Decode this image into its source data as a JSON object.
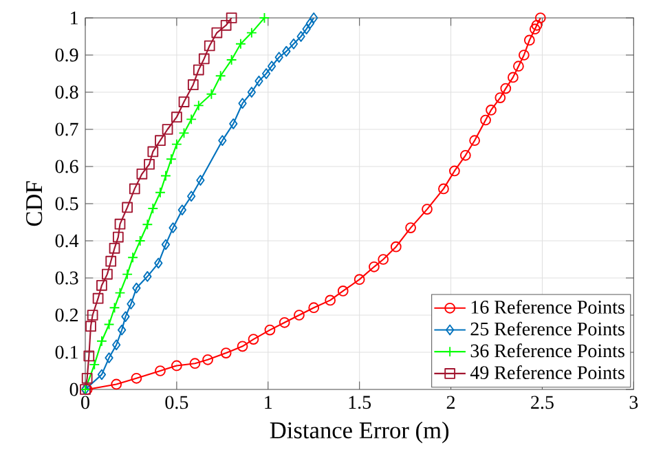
{
  "chart_data": {
    "type": "line",
    "xlabel": "Distance Error (m)",
    "ylabel": "CDF",
    "xlim": [
      0,
      3
    ],
    "ylim": [
      0,
      1
    ],
    "xticks": [
      0,
      0.5,
      1,
      1.5,
      2,
      2.5,
      3
    ],
    "yticks": [
      0,
      0.1,
      0.2,
      0.3,
      0.4,
      0.5,
      0.6,
      0.7,
      0.8,
      0.9,
      1
    ],
    "grid": true,
    "legend": "bottom right",
    "line_style": "solid",
    "series": [
      {
        "name": "16 Reference Points",
        "color": "#ff0000",
        "marker": "circle",
        "x": [
          0.01,
          0.17,
          0.28,
          0.41,
          0.5,
          0.6,
          0.67,
          0.77,
          0.86,
          0.92,
          1.01,
          1.09,
          1.17,
          1.25,
          1.34,
          1.41,
          1.5,
          1.58,
          1.63,
          1.7,
          1.78,
          1.87,
          1.96,
          2.02,
          2.08,
          2.13,
          2.19,
          2.22,
          2.27,
          2.3,
          2.34,
          2.37,
          2.4,
          2.43,
          2.46,
          2.47,
          2.49
        ],
        "values": [
          0,
          0.014,
          0.03,
          0.05,
          0.064,
          0.07,
          0.08,
          0.098,
          0.116,
          0.135,
          0.16,
          0.18,
          0.2,
          0.22,
          0.24,
          0.265,
          0.296,
          0.33,
          0.35,
          0.384,
          0.435,
          0.485,
          0.54,
          0.588,
          0.63,
          0.67,
          0.725,
          0.752,
          0.785,
          0.81,
          0.84,
          0.87,
          0.9,
          0.94,
          0.97,
          0.98,
          1
        ]
      },
      {
        "name": "25 Reference Points",
        "color": "#0072bd",
        "marker": "diamond",
        "x": [
          0,
          0.09,
          0.13,
          0.17,
          0.2,
          0.22,
          0.25,
          0.28,
          0.34,
          0.4,
          0.44,
          0.48,
          0.53,
          0.58,
          0.63,
          0.75,
          0.81,
          0.86,
          0.91,
          0.95,
          0.99,
          1.02,
          1.06,
          1.1,
          1.14,
          1.18,
          1.21,
          1.23,
          1.25
        ],
        "values": [
          0,
          0.04,
          0.085,
          0.12,
          0.16,
          0.196,
          0.23,
          0.273,
          0.304,
          0.34,
          0.39,
          0.435,
          0.483,
          0.52,
          0.563,
          0.67,
          0.715,
          0.77,
          0.8,
          0.83,
          0.85,
          0.87,
          0.894,
          0.91,
          0.93,
          0.95,
          0.97,
          0.985,
          1
        ]
      },
      {
        "name": "36 Reference Points",
        "color": "#00ff00",
        "marker": "cross",
        "x": [
          0,
          0.05,
          0.09,
          0.13,
          0.16,
          0.19,
          0.23,
          0.26,
          0.3,
          0.34,
          0.37,
          0.41,
          0.44,
          0.47,
          0.5,
          0.54,
          0.58,
          0.62,
          0.69,
          0.74,
          0.8,
          0.85,
          0.91,
          0.98
        ],
        "values": [
          0,
          0.067,
          0.13,
          0.175,
          0.22,
          0.26,
          0.31,
          0.355,
          0.4,
          0.444,
          0.487,
          0.53,
          0.575,
          0.62,
          0.66,
          0.69,
          0.727,
          0.764,
          0.795,
          0.844,
          0.887,
          0.93,
          0.96,
          1
        ]
      },
      {
        "name": "49 Reference Points",
        "color": "#a2142f",
        "marker": "square",
        "x": [
          0,
          0.01,
          0.02,
          0.03,
          0.04,
          0.07,
          0.09,
          0.12,
          0.14,
          0.16,
          0.18,
          0.19,
          0.23,
          0.27,
          0.31,
          0.35,
          0.37,
          0.41,
          0.45,
          0.5,
          0.54,
          0.59,
          0.62,
          0.65,
          0.68,
          0.72,
          0.77,
          0.8
        ],
        "values": [
          0,
          0.03,
          0.09,
          0.17,
          0.2,
          0.245,
          0.28,
          0.31,
          0.345,
          0.38,
          0.41,
          0.445,
          0.49,
          0.54,
          0.58,
          0.606,
          0.64,
          0.67,
          0.7,
          0.733,
          0.774,
          0.82,
          0.86,
          0.89,
          0.925,
          0.96,
          0.98,
          1
        ]
      }
    ]
  }
}
